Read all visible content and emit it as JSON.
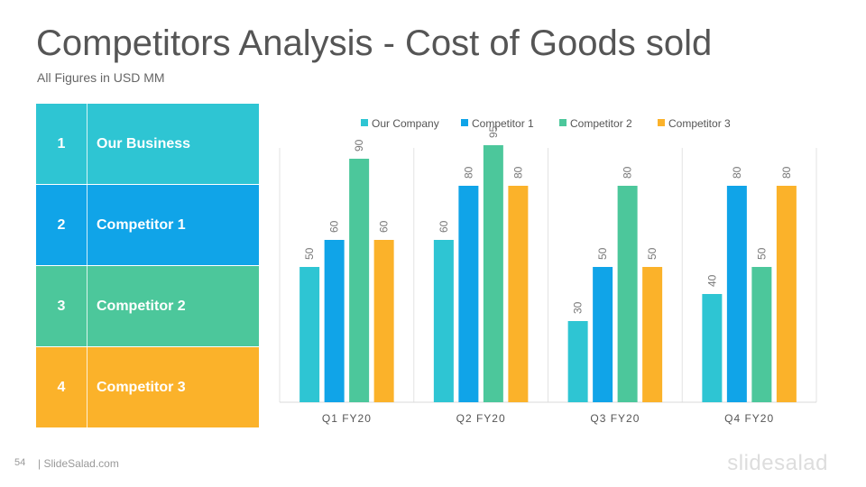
{
  "header": {
    "title": "Competitors Analysis - Cost of Goods sold",
    "subtitle": "All Figures in USD MM"
  },
  "table": [
    {
      "num": "1",
      "label": "Our Business",
      "color": "#2ec5d3"
    },
    {
      "num": "2",
      "label": "Competitor 1",
      "color": "#10a4e8"
    },
    {
      "num": "3",
      "label": "Competitor 2",
      "color": "#4cc79b"
    },
    {
      "num": "4",
      "label": "Competitor 3",
      "color": "#fbb22a"
    }
  ],
  "chart_data": {
    "type": "bar",
    "categories": [
      "Q1 FY20",
      "Q2 FY20",
      "Q3 FY20",
      "Q4 FY20"
    ],
    "series": [
      {
        "name": "Our Company",
        "color": "#2ec5d3",
        "values": [
          50,
          60,
          30,
          40
        ]
      },
      {
        "name": "Competitor 1",
        "color": "#10a4e8",
        "values": [
          60,
          80,
          50,
          80
        ]
      },
      {
        "name": "Competitor 2",
        "color": "#4cc79b",
        "values": [
          90,
          95,
          80,
          50
        ]
      },
      {
        "name": "Competitor 3",
        "color": "#fbb22a",
        "values": [
          60,
          80,
          50,
          80
        ]
      }
    ],
    "ylim": [
      0,
      100
    ],
    "legend": "top",
    "grid": false,
    "data_labels": true
  },
  "footer": {
    "page_number": "54",
    "site": "| SlideSalad.com",
    "brand": "slidesalad"
  }
}
